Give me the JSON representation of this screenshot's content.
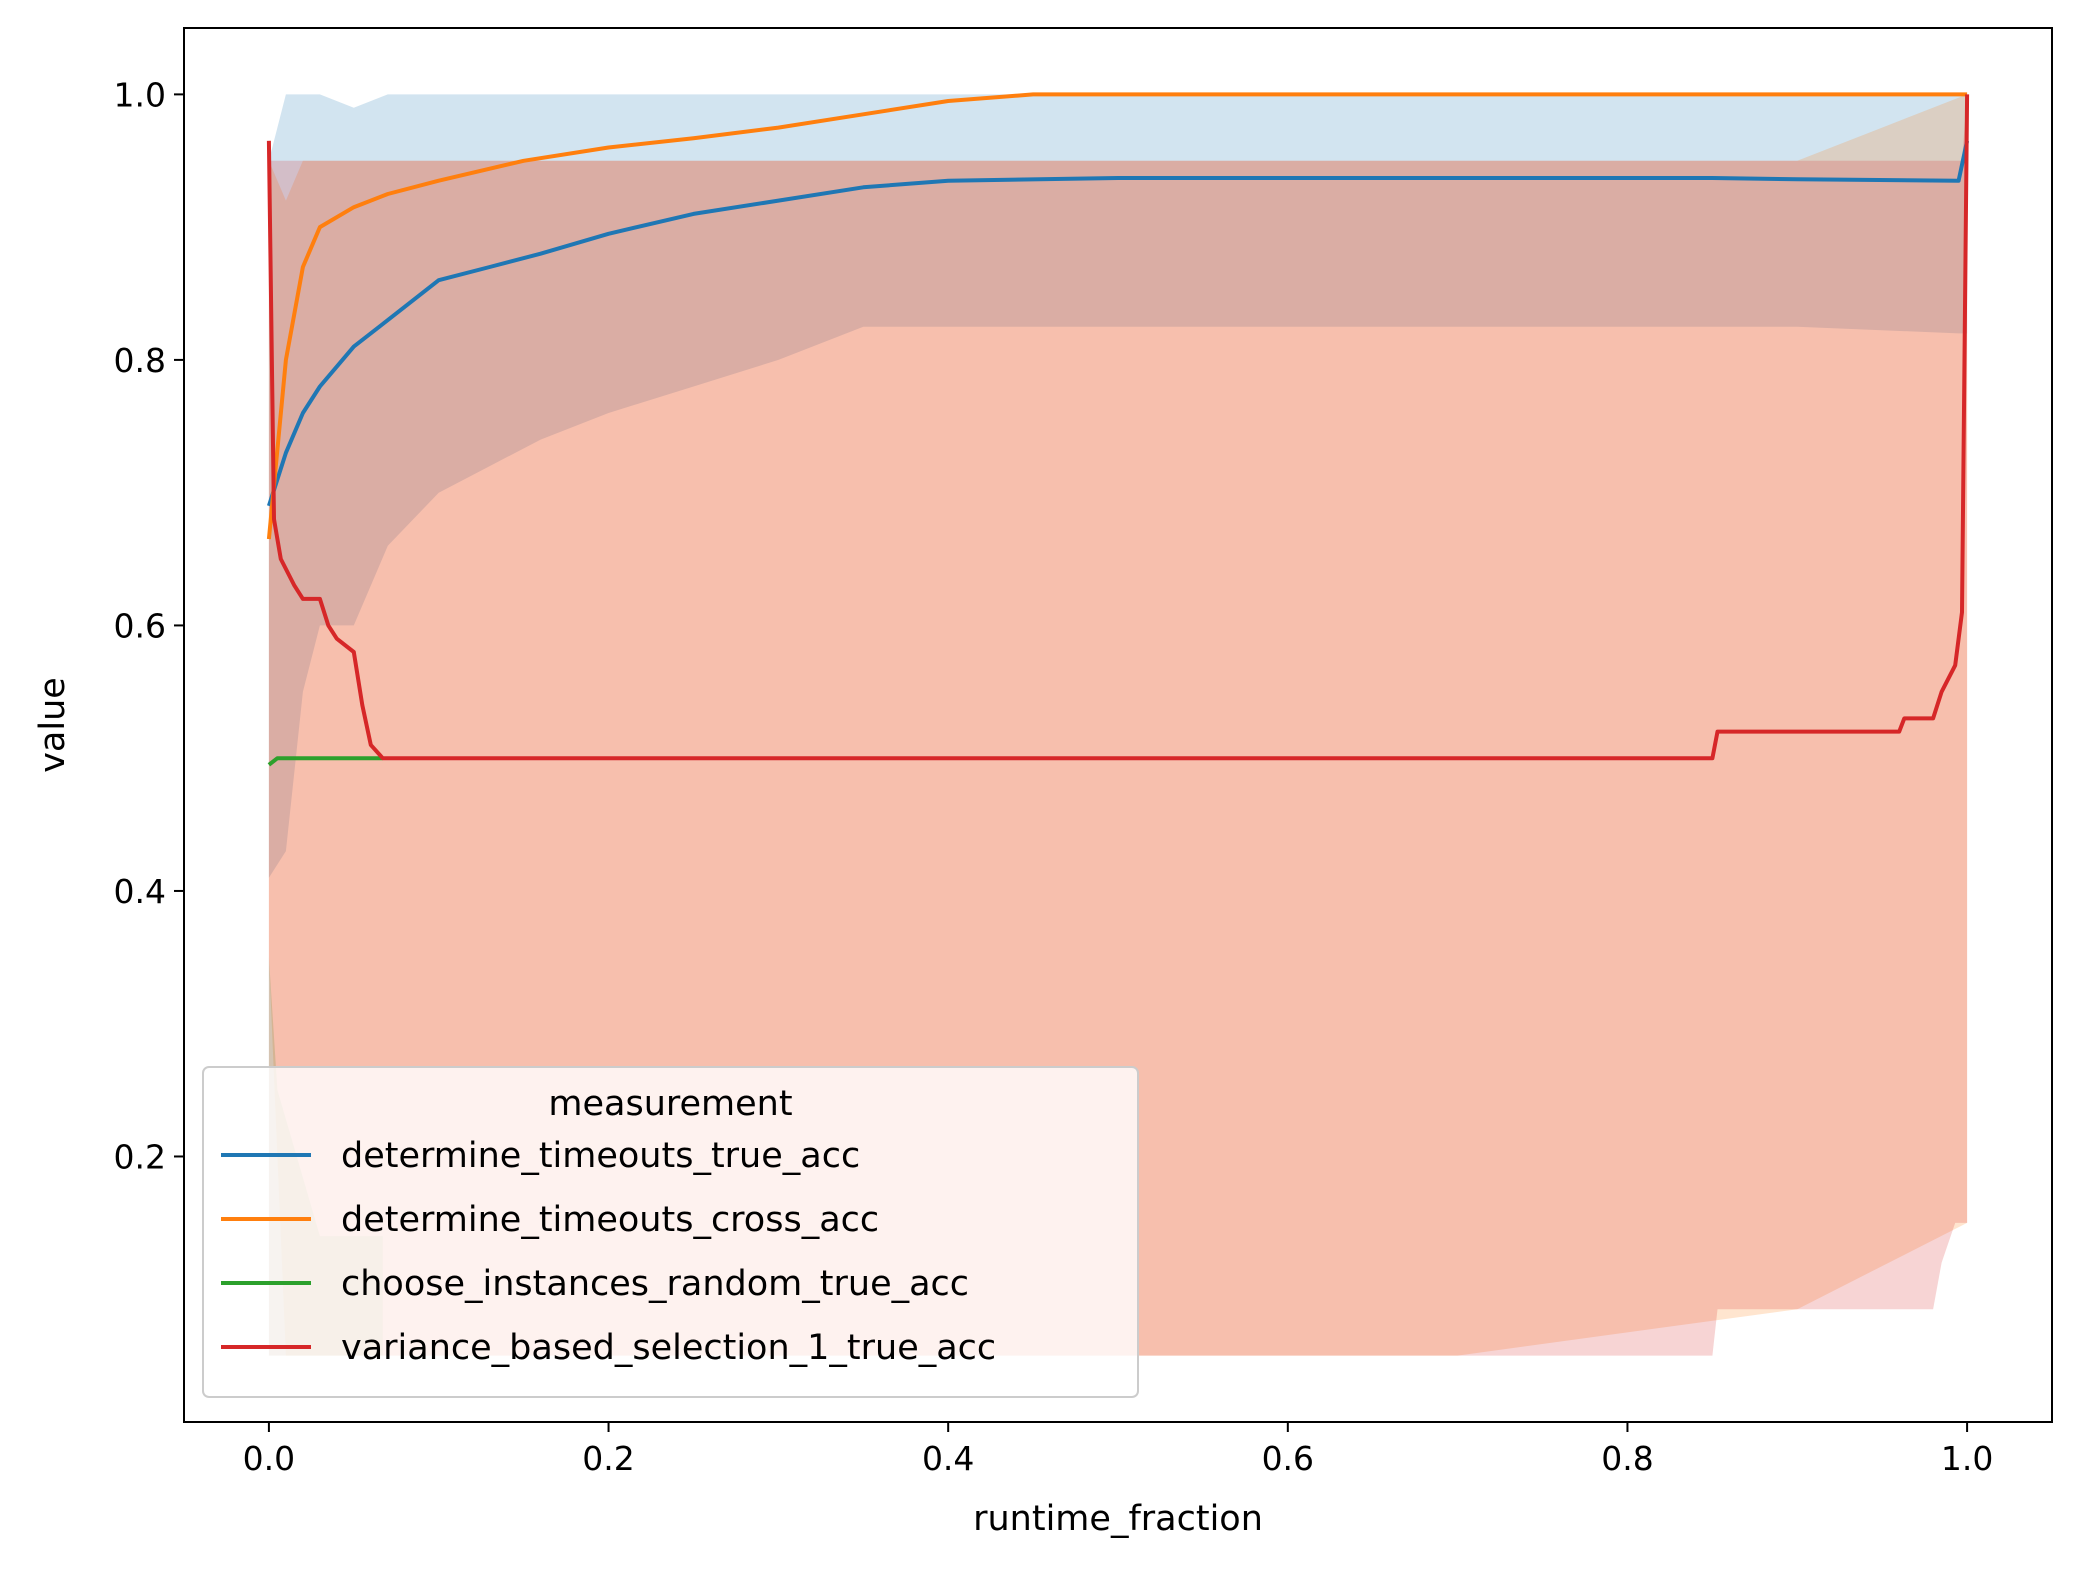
{
  "chart_data": {
    "type": "line",
    "xlabel": "runtime_fraction",
    "ylabel": "value",
    "xlim": [
      -0.05,
      1.05
    ],
    "ylim": [
      0.0,
      1.05
    ],
    "xticks": [
      "0.0",
      "0.2",
      "0.4",
      "0.6",
      "0.8",
      "1.0"
    ],
    "yticks": [
      "0.2",
      "0.4",
      "0.6",
      "0.8",
      "1.0"
    ],
    "grid": false,
    "legend": {
      "title": "measurement",
      "placement": "lower-left"
    },
    "series": [
      {
        "name": "determine_timeouts_true_acc",
        "color": "#1f77b4",
        "band_color": "#1f77b4",
        "x": [
          0.0,
          0.01,
          0.02,
          0.03,
          0.05,
          0.07,
          0.1,
          0.13,
          0.16,
          0.2,
          0.25,
          0.3,
          0.35,
          0.4,
          0.5,
          0.6,
          0.7,
          0.85,
          0.9,
          0.995,
          1.0
        ],
        "y": [
          0.69,
          0.73,
          0.76,
          0.78,
          0.81,
          0.83,
          0.86,
          0.87,
          0.88,
          0.895,
          0.91,
          0.92,
          0.93,
          0.935,
          0.937,
          0.937,
          0.937,
          0.937,
          0.936,
          0.935,
          0.965
        ],
        "lower": [
          0.41,
          0.43,
          0.55,
          0.6,
          0.6,
          0.66,
          0.7,
          0.72,
          0.74,
          0.76,
          0.78,
          0.8,
          0.825,
          0.825,
          0.825,
          0.825,
          0.825,
          0.825,
          0.825,
          0.82,
          0.82
        ],
        "upper": [
          0.95,
          1.0,
          1.0,
          1.0,
          0.99,
          1.0,
          1.0,
          1.0,
          1.0,
          1.0,
          1.0,
          1.0,
          1.0,
          1.0,
          1.0,
          1.0,
          1.0,
          1.0,
          1.0,
          1.0,
          1.0
        ]
      },
      {
        "name": "determine_timeouts_cross_acc",
        "color": "#ff7f0e",
        "band_color": "#ff7f0e",
        "x": [
          0.0,
          0.01,
          0.02,
          0.03,
          0.05,
          0.07,
          0.1,
          0.15,
          0.2,
          0.25,
          0.3,
          0.35,
          0.4,
          0.45,
          0.5,
          0.7,
          0.9,
          1.0
        ],
        "y": [
          0.665,
          0.8,
          0.87,
          0.9,
          0.915,
          0.925,
          0.935,
          0.95,
          0.96,
          0.967,
          0.975,
          0.985,
          0.995,
          1.0,
          1.0,
          1.0,
          1.0,
          1.0
        ],
        "lower": [
          0.35,
          0.05,
          0.05,
          0.05,
          0.05,
          0.05,
          0.05,
          0.05,
          0.05,
          0.05,
          0.05,
          0.05,
          0.05,
          0.05,
          0.05,
          0.05,
          0.085,
          0.15
        ],
        "upper": [
          0.95,
          0.92,
          0.95,
          0.95,
          0.95,
          0.95,
          0.95,
          0.95,
          0.95,
          0.95,
          0.95,
          0.95,
          0.95,
          0.95,
          0.95,
          0.95,
          0.95,
          1.0
        ]
      },
      {
        "name": "choose_instances_random_true_acc",
        "color": "#2ca02c",
        "band_color": "#2ca02c",
        "x": [
          0.0,
          0.005,
          0.03,
          0.06,
          0.067
        ],
        "y": [
          0.495,
          0.5,
          0.5,
          0.5,
          0.5
        ],
        "lower": [
          0.05,
          0.05,
          0.05,
          0.05,
          0.05
        ],
        "upper": [
          0.35,
          0.25,
          0.14,
          0.14,
          0.14
        ]
      },
      {
        "name": "variance_based_selection_1_true_acc",
        "color": "#d62728",
        "band_color": "#d62728",
        "x": [
          0.0,
          0.003,
          0.007,
          0.015,
          0.02,
          0.03,
          0.035,
          0.04,
          0.05,
          0.055,
          0.06,
          0.067,
          0.1,
          0.5,
          0.85,
          0.853,
          0.9,
          0.96,
          0.963,
          0.98,
          0.985,
          0.993,
          0.997,
          1.0
        ],
        "y": [
          0.965,
          0.68,
          0.65,
          0.63,
          0.62,
          0.62,
          0.6,
          0.59,
          0.58,
          0.54,
          0.51,
          0.5,
          0.5,
          0.5,
          0.5,
          0.52,
          0.52,
          0.52,
          0.53,
          0.53,
          0.55,
          0.57,
          0.61,
          1.0
        ],
        "lower": [
          0.05,
          0.05,
          0.05,
          0.05,
          0.05,
          0.05,
          0.05,
          0.05,
          0.05,
          0.05,
          0.05,
          0.05,
          0.05,
          0.05,
          0.05,
          0.085,
          0.085,
          0.085,
          0.085,
          0.085,
          0.12,
          0.15,
          0.15,
          0.15
        ],
        "upper": [
          0.95,
          0.95,
          0.95,
          0.95,
          0.95,
          0.95,
          0.95,
          0.95,
          0.95,
          0.95,
          0.95,
          0.95,
          0.95,
          0.95,
          0.95,
          0.95,
          0.95,
          0.95,
          0.95,
          0.95,
          0.95,
          0.95,
          0.95,
          1.0
        ]
      }
    ]
  }
}
